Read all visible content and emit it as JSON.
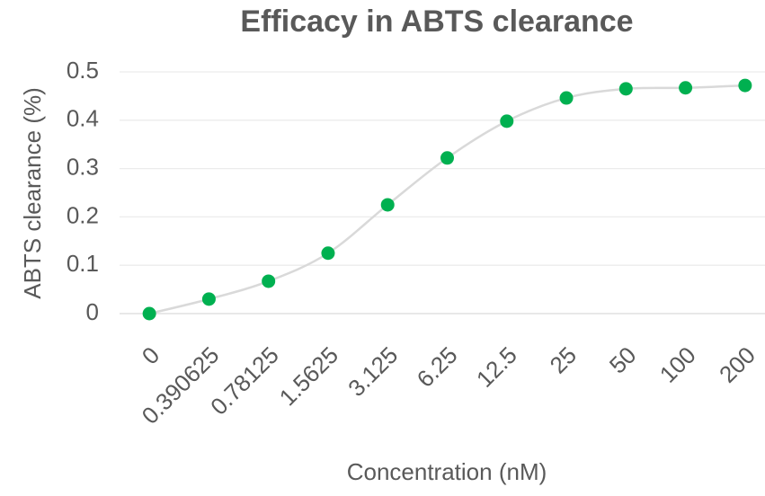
{
  "chart_data": {
    "type": "line",
    "title": "Efficacy in ABTS clearance",
    "x_label": "Concentration (nM)",
    "y_label": "ABTS clearance (%)",
    "categories": [
      "0",
      "0.390625",
      "0.78125",
      "1.5625",
      "3.125",
      "6.25",
      "12.5",
      "25",
      "50",
      "100",
      "200"
    ],
    "series": [
      {
        "name": "ABTS clearance",
        "color": "#00b050",
        "line_color": "#d9d9d9",
        "values": [
          0,
          0.03,
          0.067,
          0.125,
          0.225,
          0.322,
          0.398,
          0.446,
          0.465,
          0.467,
          0.472
        ]
      }
    ],
    "ylim": [
      0,
      0.5
    ],
    "yticks": [
      0,
      0.1,
      0.2,
      0.3,
      0.4,
      0.5
    ],
    "grid": true
  }
}
